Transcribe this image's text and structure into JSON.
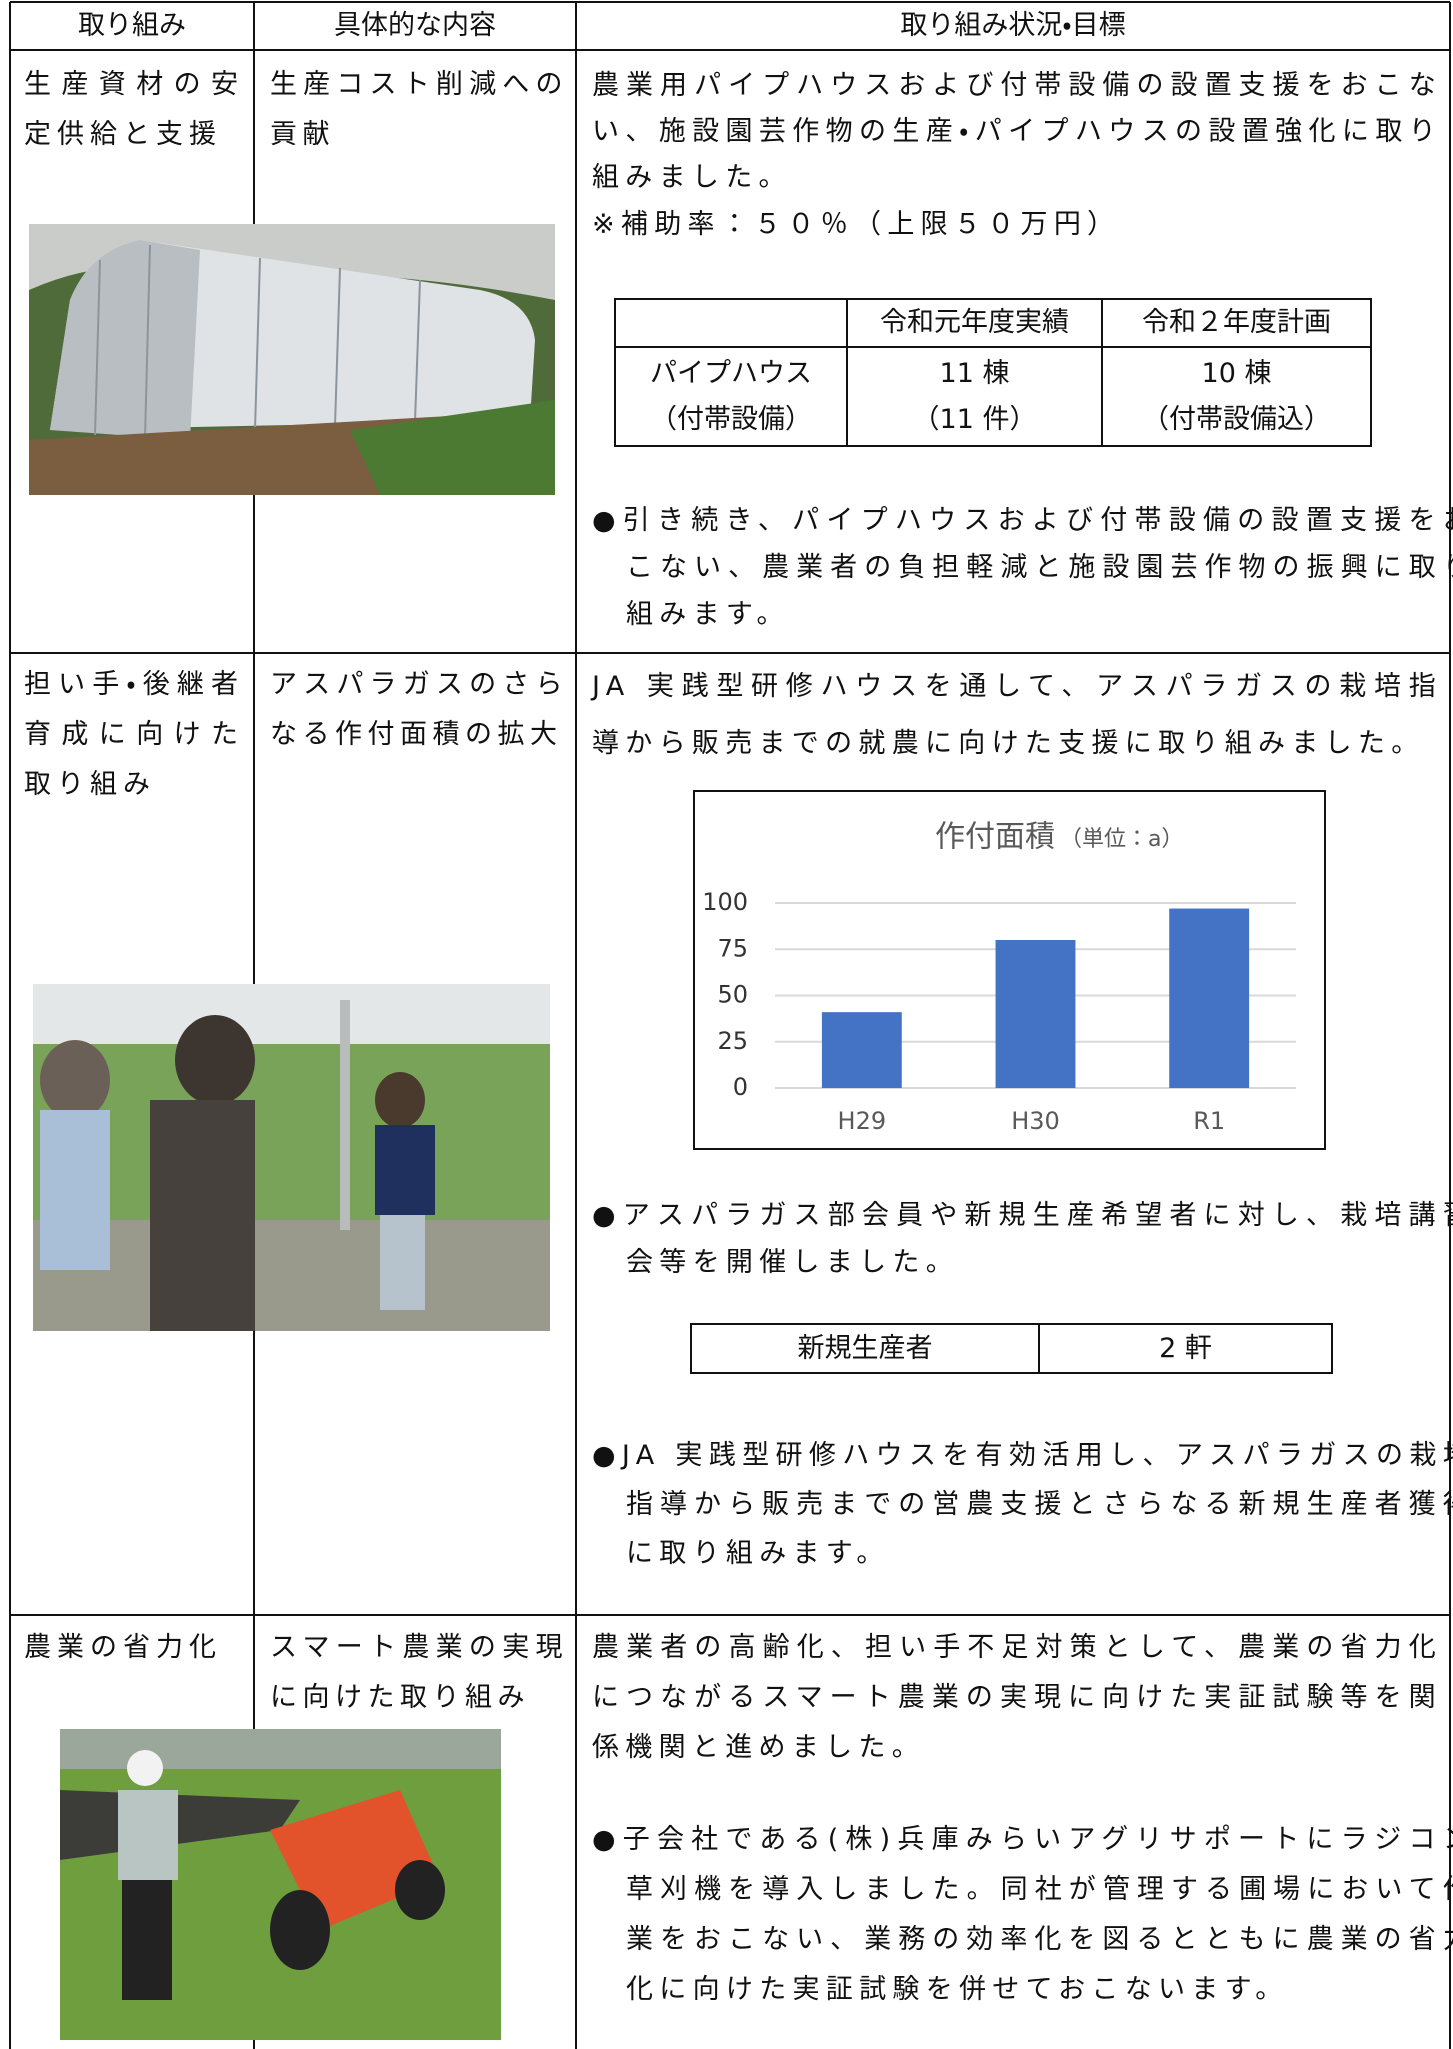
{
  "table": {
    "header": [
      "取り組み",
      "具体的な内容",
      "取り組み状況・目標"
    ],
    "rows": [
      {
        "activity": "生産資材の安定供給と支援",
        "content": "生産コスト削減への貢献",
        "description": "農業用パイプハウスおよび付帯設備の設置支援をおこない、施設園芸作物の生産・パイプハウスの設置強化に取り組みました。",
        "note": "※補助率：５０％（上限５０万円）",
        "subtable": {
          "header": [
            "令和元年度実績",
            "令和２年度計画"
          ],
          "rows": [
            [
              [
                "パイプハウス",
                "（付帯設備）"
              ],
              [
                "11 棟",
                "（11 件）"
              ],
              [
                "10 棟",
                "（付帯設備込）"
              ]
            ]
          ]
        },
        "outlook": "●引き続き、パイプハウスおよび付帯設備の設置支援をおこない、農業者の負担軽減と施設園芸作物の振興に取り組みます。"
      },
      {
        "activity": "担い手・後継者育成に向けた取り組み",
        "content": "アスパラガスのさらなる作付面積の拡大",
        "description": "JA 実践型研修ハウスを通して、アスパラガスの栽培指導から販売までの就農に向けた支援に取り組みました。",
        "bullet": "●アスパラガス部会員や新規生産希望者に対し、栽培講習会等を開催しました。",
        "subtable": {
          "rows": [
            [
              "新規生産者",
              "2 軒"
            ]
          ]
        },
        "outlook": "●JA 実践型研修ハウスを有効活用し、アスパラガスの栽培指導から販売までの営農支援とさらなる新規生産者獲得に取り組みます。"
      },
      {
        "activity": "農業の省力化",
        "content": "スマート農業の実現に向けた取り組み",
        "description": "農業者の高齢化、担い手不足対策として、農業の省力化につながるスマート農業の実現に向けた実証試験等を関係機関と進めました。",
        "outlook": "●子会社である(株)兵庫みらいアグリサポートにラジコン草刈機を導入しました。同社が管理する圃場において作業をおこない、業務の効率化を図るとともに農業の省力化に向けた実証試験を併せておこないます。"
      }
    ]
  },
  "chart_data": {
    "type": "bar",
    "title": "作付面積",
    "subtitle": "（単位：a）",
    "categories": [
      "H29",
      "H30",
      "R1"
    ],
    "values": [
      41,
      80,
      97
    ],
    "color": "#4472c4",
    "ylim": [
      0,
      100
    ],
    "yticks": [
      0,
      25,
      50,
      75,
      100
    ],
    "grid": true
  }
}
